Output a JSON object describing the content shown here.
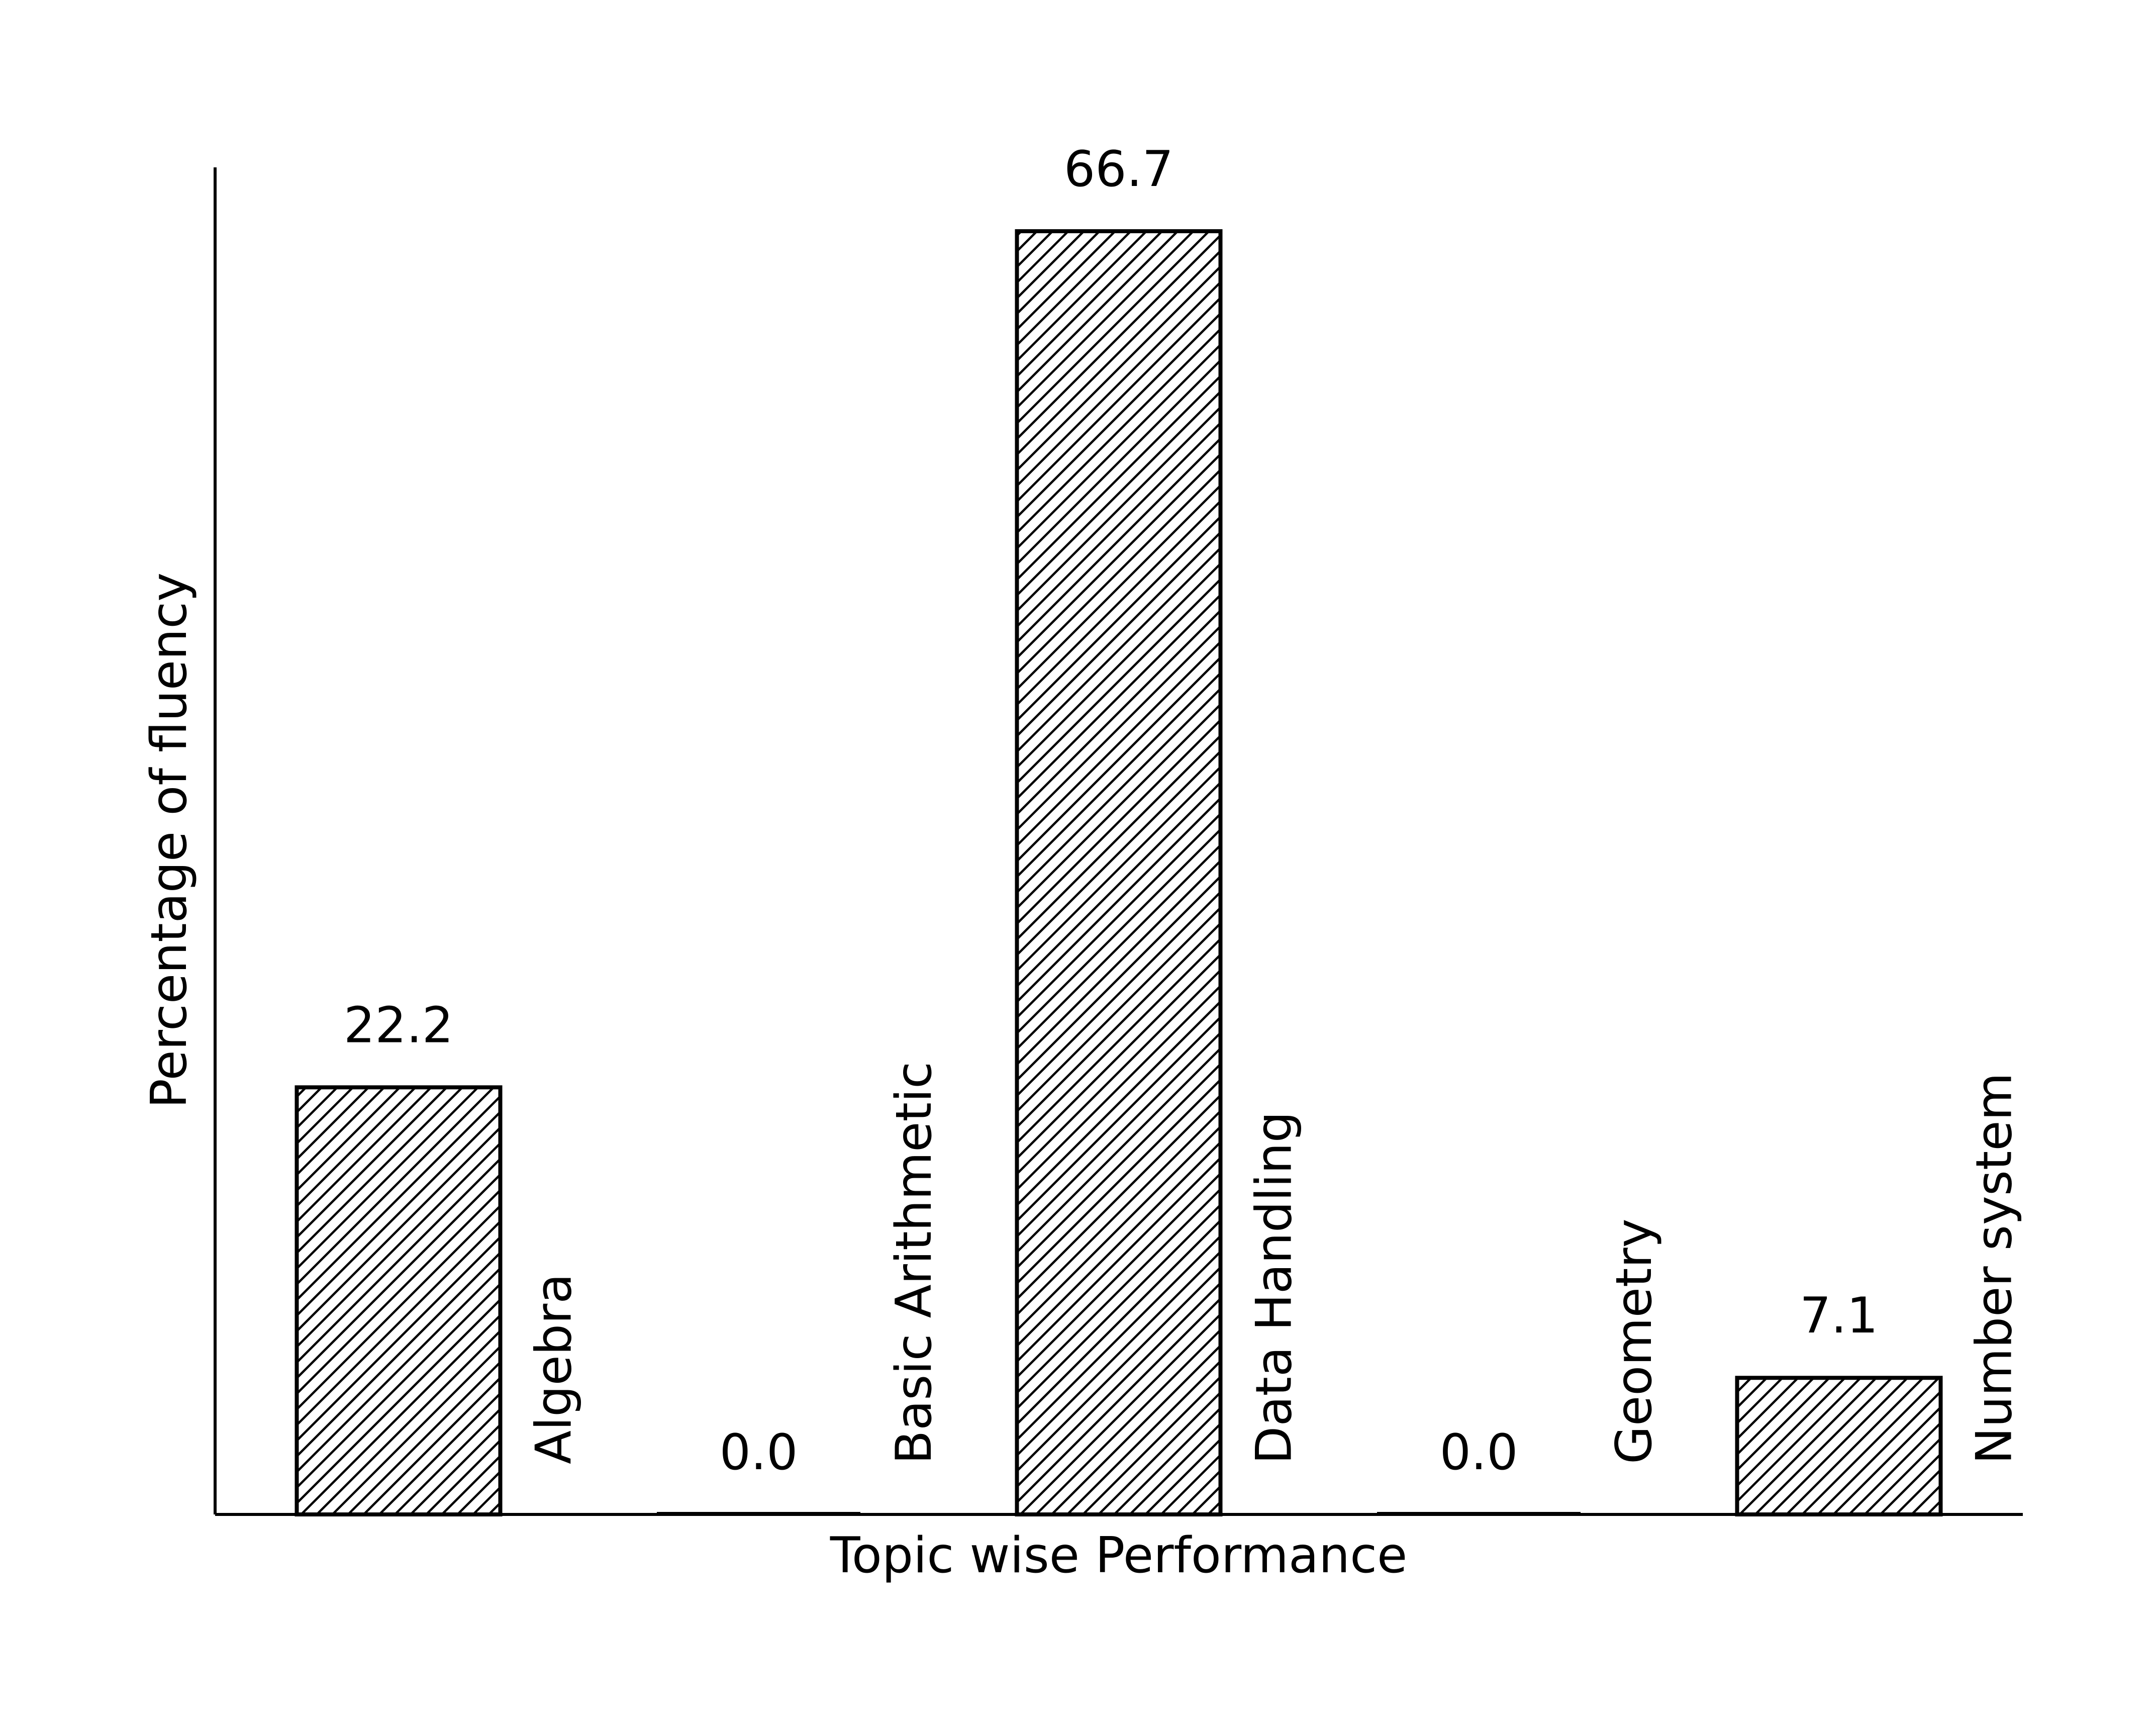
{
  "chart_data": {
    "type": "bar",
    "xlabel": "Topic wise Performance",
    "ylabel": "Percentage of fluency",
    "categories": [
      "Algebra",
      "Basic Arithmetic",
      "Data Handling",
      "Geometry",
      "Number system"
    ],
    "values": [
      22.2,
      0.0,
      66.7,
      0.0,
      7.1
    ],
    "value_labels": [
      "22.2",
      "0.0",
      "66.7",
      "0.0",
      "7.1"
    ],
    "ylim": [
      0,
      70
    ],
    "bar_pattern": "diagonal-hatch",
    "colors": {
      "bar_edge": "#000000",
      "bar_fill": "#ffffff",
      "hatch": "#000000",
      "axis": "#000000"
    },
    "grid": false,
    "y_ticks_visible": false,
    "x_ticks_visible": false,
    "category_label_orientation": "vertical"
  }
}
